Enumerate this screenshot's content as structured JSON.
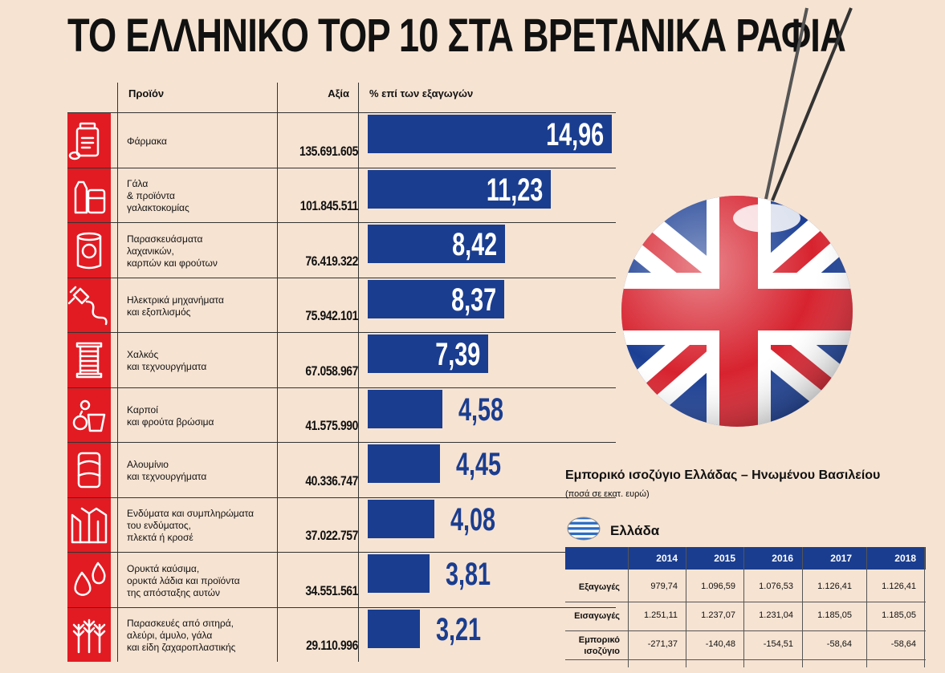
{
  "title": "ΤΟ ΕΛΛΗΝΙΚΟ TOP 10 ΣΤΑ ΒΡΕΤΑΝΙΚΑ ΡΑΦΙΑ",
  "columns": {
    "product": "Προϊόν",
    "value": "Αξία",
    "percent": "% επί των εξαγωγών"
  },
  "chart_data": {
    "type": "bar",
    "title": "ΤΟ ΕΛΛΗΝΙΚΟ TOP 10 ΣΤΑ ΒΡΕΤΑΝΙΚΑ ΡΑΦΙΑ",
    "xlabel": "% επί των εξαγωγών",
    "categories": [
      "Φάρμακα",
      "Γάλα & προϊόντα γαλακτοκομίας",
      "Παρασκευάσματα λαχανικών, καρπών και φρούτων",
      "Ηλεκτρικά μηχανήματα και εξοπλισμός",
      "Χαλκός και τεχνουργήματα",
      "Καρποί και φρούτα βρώσιμα",
      "Αλουμίνιο και τεχνουργήματα",
      "Ενδύματα και συμπληρώματα του ενδύματος, πλεκτά ή κροσέ",
      "Ορυκτά καύσιμα, ορυκτά λάδια και προϊόντα της απόσταξης αυτών",
      "Παρασκευές από σιτηρά, αλεύρι, άμυλο, γάλα και είδη ζαχαροπλαστικής"
    ],
    "values": [
      14.96,
      11.23,
      8.42,
      8.37,
      7.39,
      4.58,
      4.45,
      4.08,
      3.81,
      3.21
    ],
    "value_labels": [
      "14,96",
      "11,23",
      "8,42",
      "8,37",
      "7,39",
      "4,58",
      "4,45",
      "4,08",
      "3,81",
      "3,21"
    ],
    "amounts": [
      "135.691.605",
      "101.845.511",
      "76.419.322",
      "75.942.101",
      "67.058.967",
      "41.575.990",
      "40.336.747",
      "37.022.757",
      "34.551.561",
      "29.110.996"
    ],
    "xlim": [
      0,
      15
    ]
  },
  "products": [
    {
      "lines": [
        "Φάρμακα"
      ],
      "icon": "pill-bottle-icon"
    },
    {
      "lines": [
        "Γάλα",
        "& προϊόντα",
        "γαλακτοκομίας"
      ],
      "icon": "milk-icon"
    },
    {
      "lines": [
        "Παρασκευάσματα",
        "λαχανικών,",
        "καρπών και φρούτων"
      ],
      "icon": "canned-food-icon"
    },
    {
      "lines": [
        "Ηλεκτρικά μηχανήματα",
        "και εξοπλισμός"
      ],
      "icon": "plug-icon"
    },
    {
      "lines": [
        "Χαλκός",
        "και τεχνουργήματα"
      ],
      "icon": "copper-coil-icon"
    },
    {
      "lines": [
        "Καρποί",
        "και φρούτα βρώσιμα"
      ],
      "icon": "fruit-basket-icon"
    },
    {
      "lines": [
        "Αλουμίνιο",
        "και τεχνουργήματα"
      ],
      "icon": "can-icon"
    },
    {
      "lines": [
        "Ενδύματα και συμπληρώματα",
        "του ενδύματος,",
        "πλεκτά ή κροσέ"
      ],
      "icon": "jacket-icon"
    },
    {
      "lines": [
        "Ορυκτά καύσιμα,",
        "ορυκτά λάδια και προϊόντα",
        "της απόσταξης αυτών"
      ],
      "icon": "oil-drops-icon"
    },
    {
      "lines": [
        "Παρασκευές από σιτηρά,",
        "αλεύρι, άμυλο, γάλα",
        "και είδη ζαχαροπλαστικής"
      ],
      "icon": "wheat-icon"
    }
  ],
  "trade": {
    "title": "Εμπορικό ισοζύγιο Ελλάδας – Ηνωμένου Βασιλείου",
    "unit": "(ποσά σε εκατ. ευρώ)",
    "country": "Ελλάδα",
    "flag_icon": "greek-flag-icon",
    "years": [
      "2014",
      "2015",
      "2016",
      "2017",
      "2018"
    ],
    "rows": [
      {
        "label": [
          "Εξαγωγές"
        ],
        "values": [
          "979,74",
          "1.096,59",
          "1.076,53",
          "1.126,41",
          "1.126,41"
        ]
      },
      {
        "label": [
          "Εισαγωγές"
        ],
        "values": [
          "1.251,11",
          "1.237,07",
          "1.231,04",
          "1.185,05",
          "1.185,05"
        ]
      },
      {
        "label": [
          "Εμπορικό",
          "ισοζύγιο"
        ],
        "values": [
          "-271,37",
          "-140,48",
          "-154,51",
          "-58,64",
          "-58,64"
        ]
      }
    ]
  },
  "illustration": "uk-flag-ball-icon",
  "colors": {
    "bar": "#1a3d8f",
    "icon_bg": "#e21b23",
    "background": "#f6e3d2"
  }
}
